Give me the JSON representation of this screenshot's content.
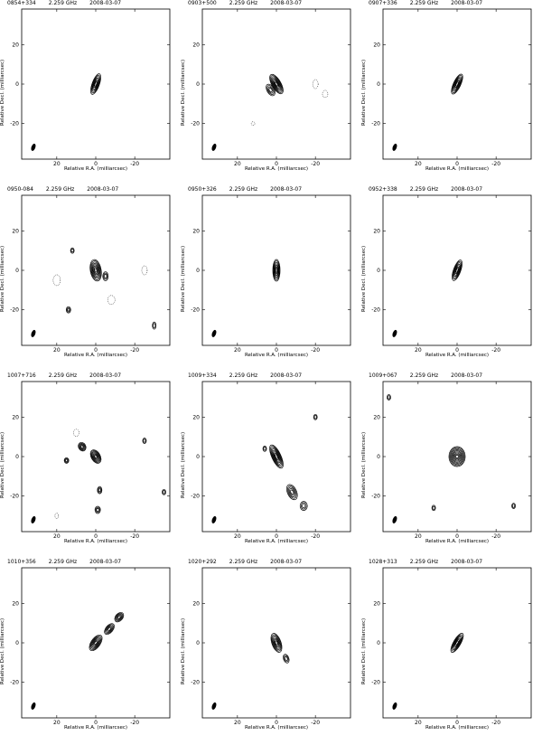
{
  "panels": [
    {
      "source": "0854+334",
      "freq": "2.259 GHz",
      "date": "2008-03-07",
      "type": "compact",
      "pa": 20
    },
    {
      "source": "0903+500",
      "freq": "2.259 GHz",
      "date": "2008-03-07",
      "type": "jet_sw",
      "pa": -30
    },
    {
      "source": "0907+336",
      "freq": "2.259 GHz",
      "date": "2008-03-07",
      "type": "compact",
      "pa": 25
    },
    {
      "source": "0950-084",
      "freq": "2.259 GHz",
      "date": "2008-03-07",
      "type": "compact_ext",
      "pa": -10
    },
    {
      "source": "0950+326",
      "freq": "2.259 GHz",
      "date": "2008-03-07",
      "type": "compact",
      "pa": 0
    },
    {
      "source": "0952+338",
      "freq": "2.259 GHz",
      "date": "2008-03-07",
      "type": "compact",
      "pa": 20
    },
    {
      "source": "1007+716",
      "freq": "2.259 GHz",
      "date": "2008-03-07",
      "type": "multi",
      "pa": -40
    },
    {
      "source": "1009+334",
      "freq": "2.259 GHz",
      "date": "2008-03-07",
      "type": "jet_se",
      "pa": -30
    },
    {
      "source": "1009+067",
      "freq": "2.259 GHz",
      "date": "2008-03-07",
      "type": "blob",
      "pa": 0
    },
    {
      "source": "1010+356",
      "freq": "2.259 GHz",
      "date": "2008-03-07",
      "type": "jet_ne",
      "pa": 40
    },
    {
      "source": "1020+292",
      "freq": "2.259 GHz",
      "date": "2008-03-07",
      "type": "jet_se2",
      "pa": -30
    },
    {
      "source": "1028+313",
      "freq": "2.259 GHz",
      "date": "2008-03-07",
      "type": "compact",
      "pa": 30
    }
  ],
  "axes": {
    "xlabel": "Relative R.A. (milliarcsec)",
    "ylabel": "Relative Decl. (milliarcsec)",
    "xticks": [
      20,
      0,
      -20
    ],
    "yticks": [
      20,
      0,
      -20
    ],
    "xlim": [
      38,
      -38
    ],
    "ylim": [
      -38,
      38
    ]
  }
}
